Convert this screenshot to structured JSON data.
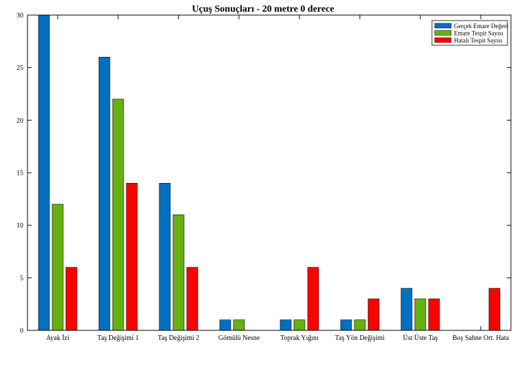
{
  "chart_data": {
    "type": "bar",
    "title": "Uçuş Sonuçları - 20 metre 0 derece",
    "categories": [
      "Ayak İzi",
      "Taş Değişimi 1",
      "Taş Değişimi 2",
      "Gömülü Nesne",
      "Toprak Yığını",
      "Taş Yön Değişimi",
      "Üst Üste Taş",
      "Boş Sahne Ort. Hata"
    ],
    "series": [
      {
        "name": "Gerçek Emare Değeri",
        "color": "#0070c0",
        "values": [
          30,
          26,
          14,
          1,
          1,
          1,
          4,
          0
        ]
      },
      {
        "name": "Emare Tespit Sayısı",
        "color": "#66b014",
        "values": [
          12,
          22,
          11,
          1,
          1,
          1,
          3,
          0
        ]
      },
      {
        "name": "Hatalı Tespit Sayısı",
        "color": "#ff0000",
        "values": [
          6,
          14,
          6,
          0,
          6,
          3,
          3,
          4
        ]
      }
    ],
    "ylim": [
      0,
      30
    ],
    "yticks": [
      0,
      5,
      10,
      15,
      20,
      25,
      30
    ],
    "xlabel": "",
    "ylabel": "",
    "grid": false,
    "legend_position": "top-right"
  }
}
